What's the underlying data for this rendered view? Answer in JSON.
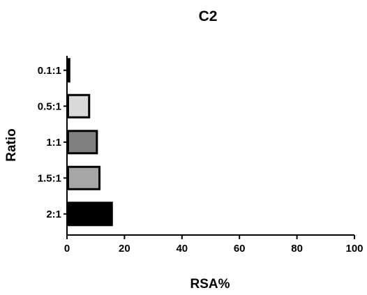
{
  "chart_data": {
    "type": "bar",
    "orientation": "horizontal",
    "title": "C2",
    "xlabel": "RSA%",
    "ylabel": "Ratio",
    "categories": [
      "0.1:1",
      "0.5:1",
      "1:1",
      "1.5:1",
      "2:1"
    ],
    "values": [
      0.8,
      7.7,
      10.4,
      11.3,
      15.6
    ],
    "colors": [
      "#000000",
      "#d9d9d9",
      "#808080",
      "#a6a6a6",
      "#000000"
    ],
    "xlim": [
      0,
      100
    ],
    "xticks": [
      "0",
      "20",
      "40",
      "60",
      "80",
      "100"
    ],
    "grid": false,
    "legend": "none"
  }
}
